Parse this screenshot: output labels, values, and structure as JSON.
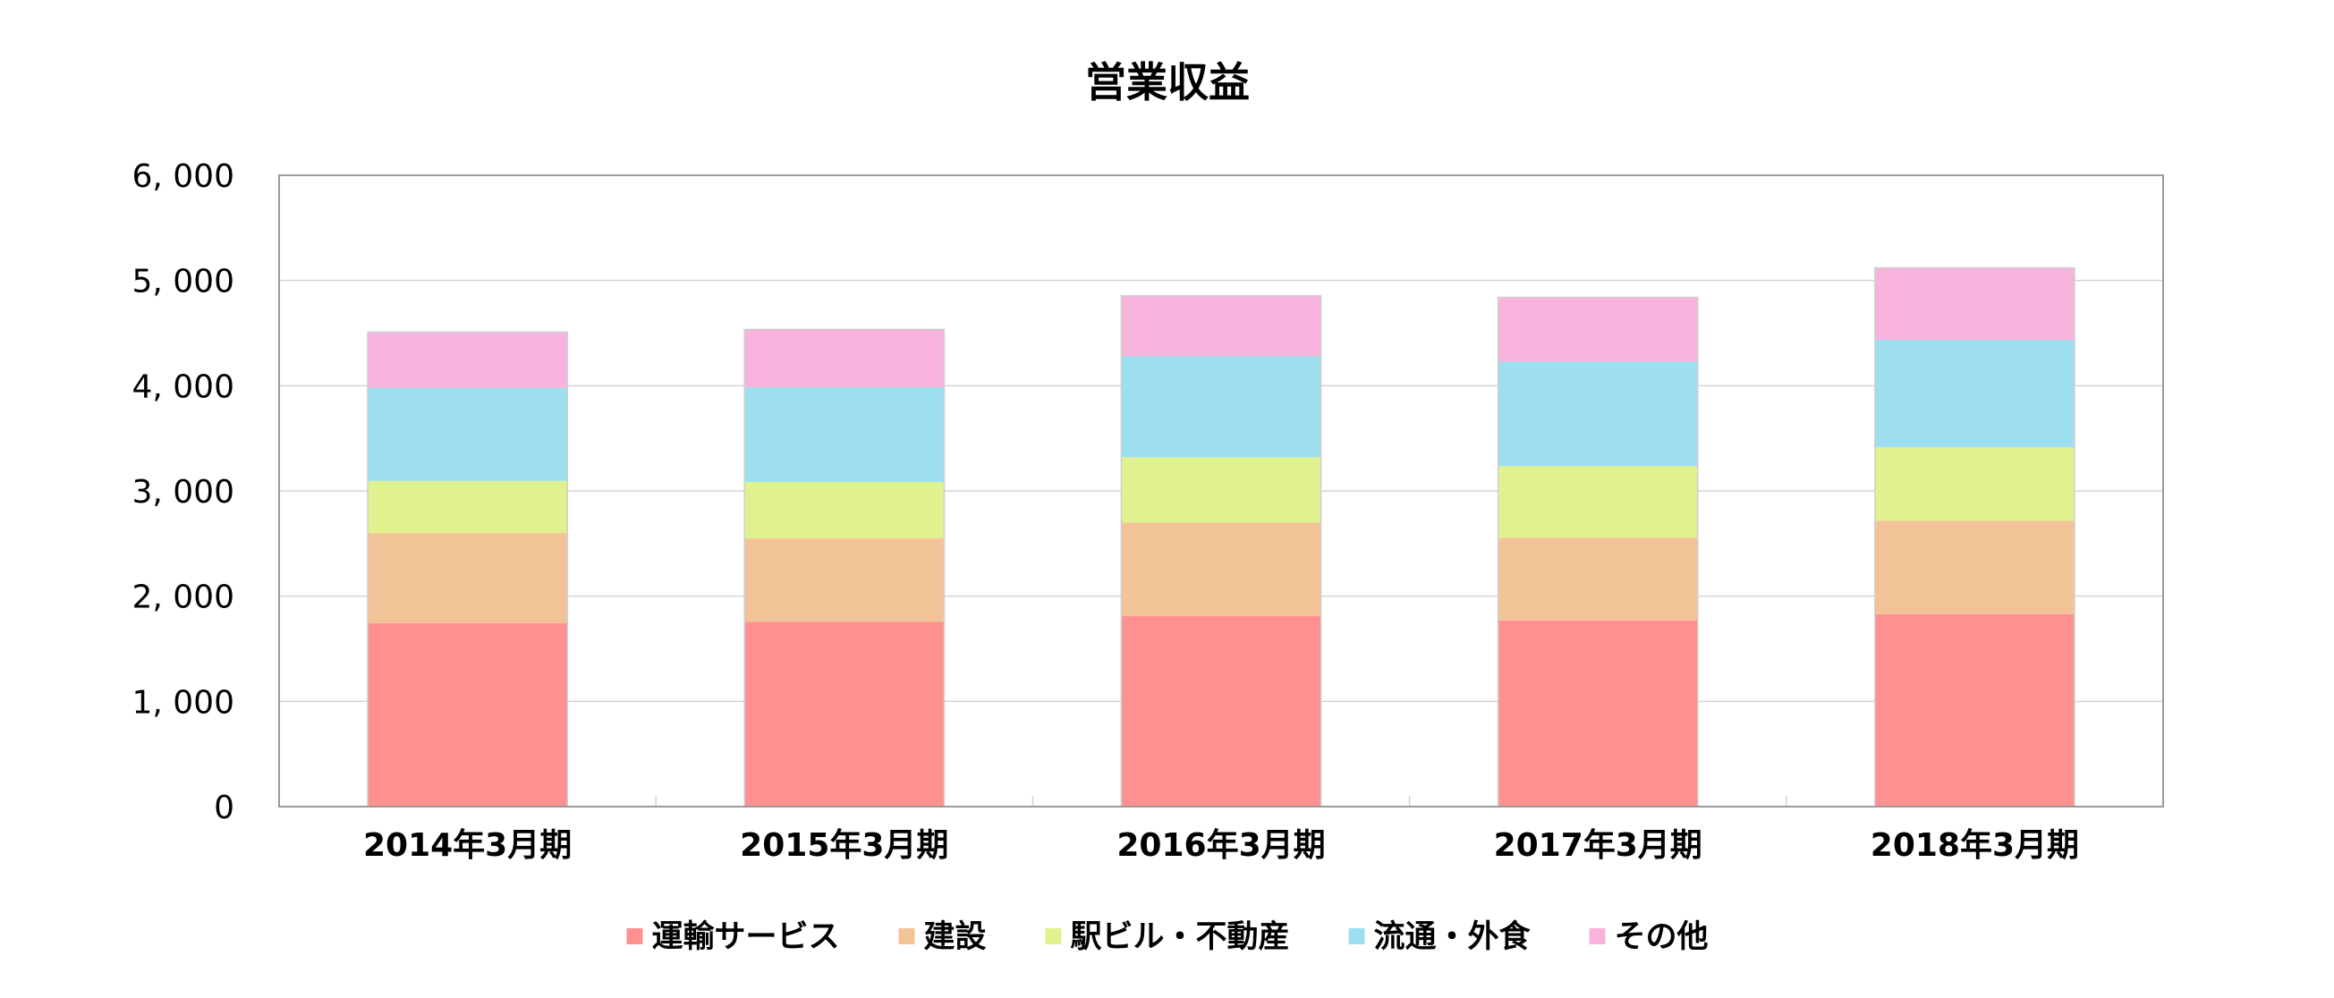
{
  "chart_data": {
    "type": "bar",
    "stacked": true,
    "title": "営業収益",
    "xlabel": "",
    "ylabel": "",
    "categories": [
      "2014年3月期",
      "2015年3月期",
      "2016年3月期",
      "2017年3月期",
      "2018年3月期"
    ],
    "series": [
      {
        "name": "運輸サービス",
        "color": "#ff9090",
        "values": [
          1745,
          1755,
          1810,
          1770,
          1830
        ]
      },
      {
        "name": "建設",
        "color": "#f3c398",
        "values": [
          855,
          795,
          890,
          785,
          885
        ]
      },
      {
        "name": "駅ビル・不動産",
        "color": "#dff28e",
        "values": [
          495,
          535,
          620,
          680,
          700
        ]
      },
      {
        "name": "流通・外食",
        "color": "#9ddfee",
        "values": [
          885,
          900,
          960,
          995,
          1020
        ]
      },
      {
        "name": "その他",
        "color": "#f8b3dd",
        "values": [
          530,
          550,
          575,
          610,
          685
        ]
      }
    ],
    "ylim": [
      0,
      6000
    ],
    "yticks": [
      0,
      1000,
      2000,
      3000,
      4000,
      5000,
      6000
    ],
    "ytick_labels": [
      "0",
      "1, 000",
      "2, 000",
      "3, 000",
      "4, 000",
      "5, 000",
      "6, 000"
    ],
    "grid": true,
    "legend_position": "bottom"
  }
}
